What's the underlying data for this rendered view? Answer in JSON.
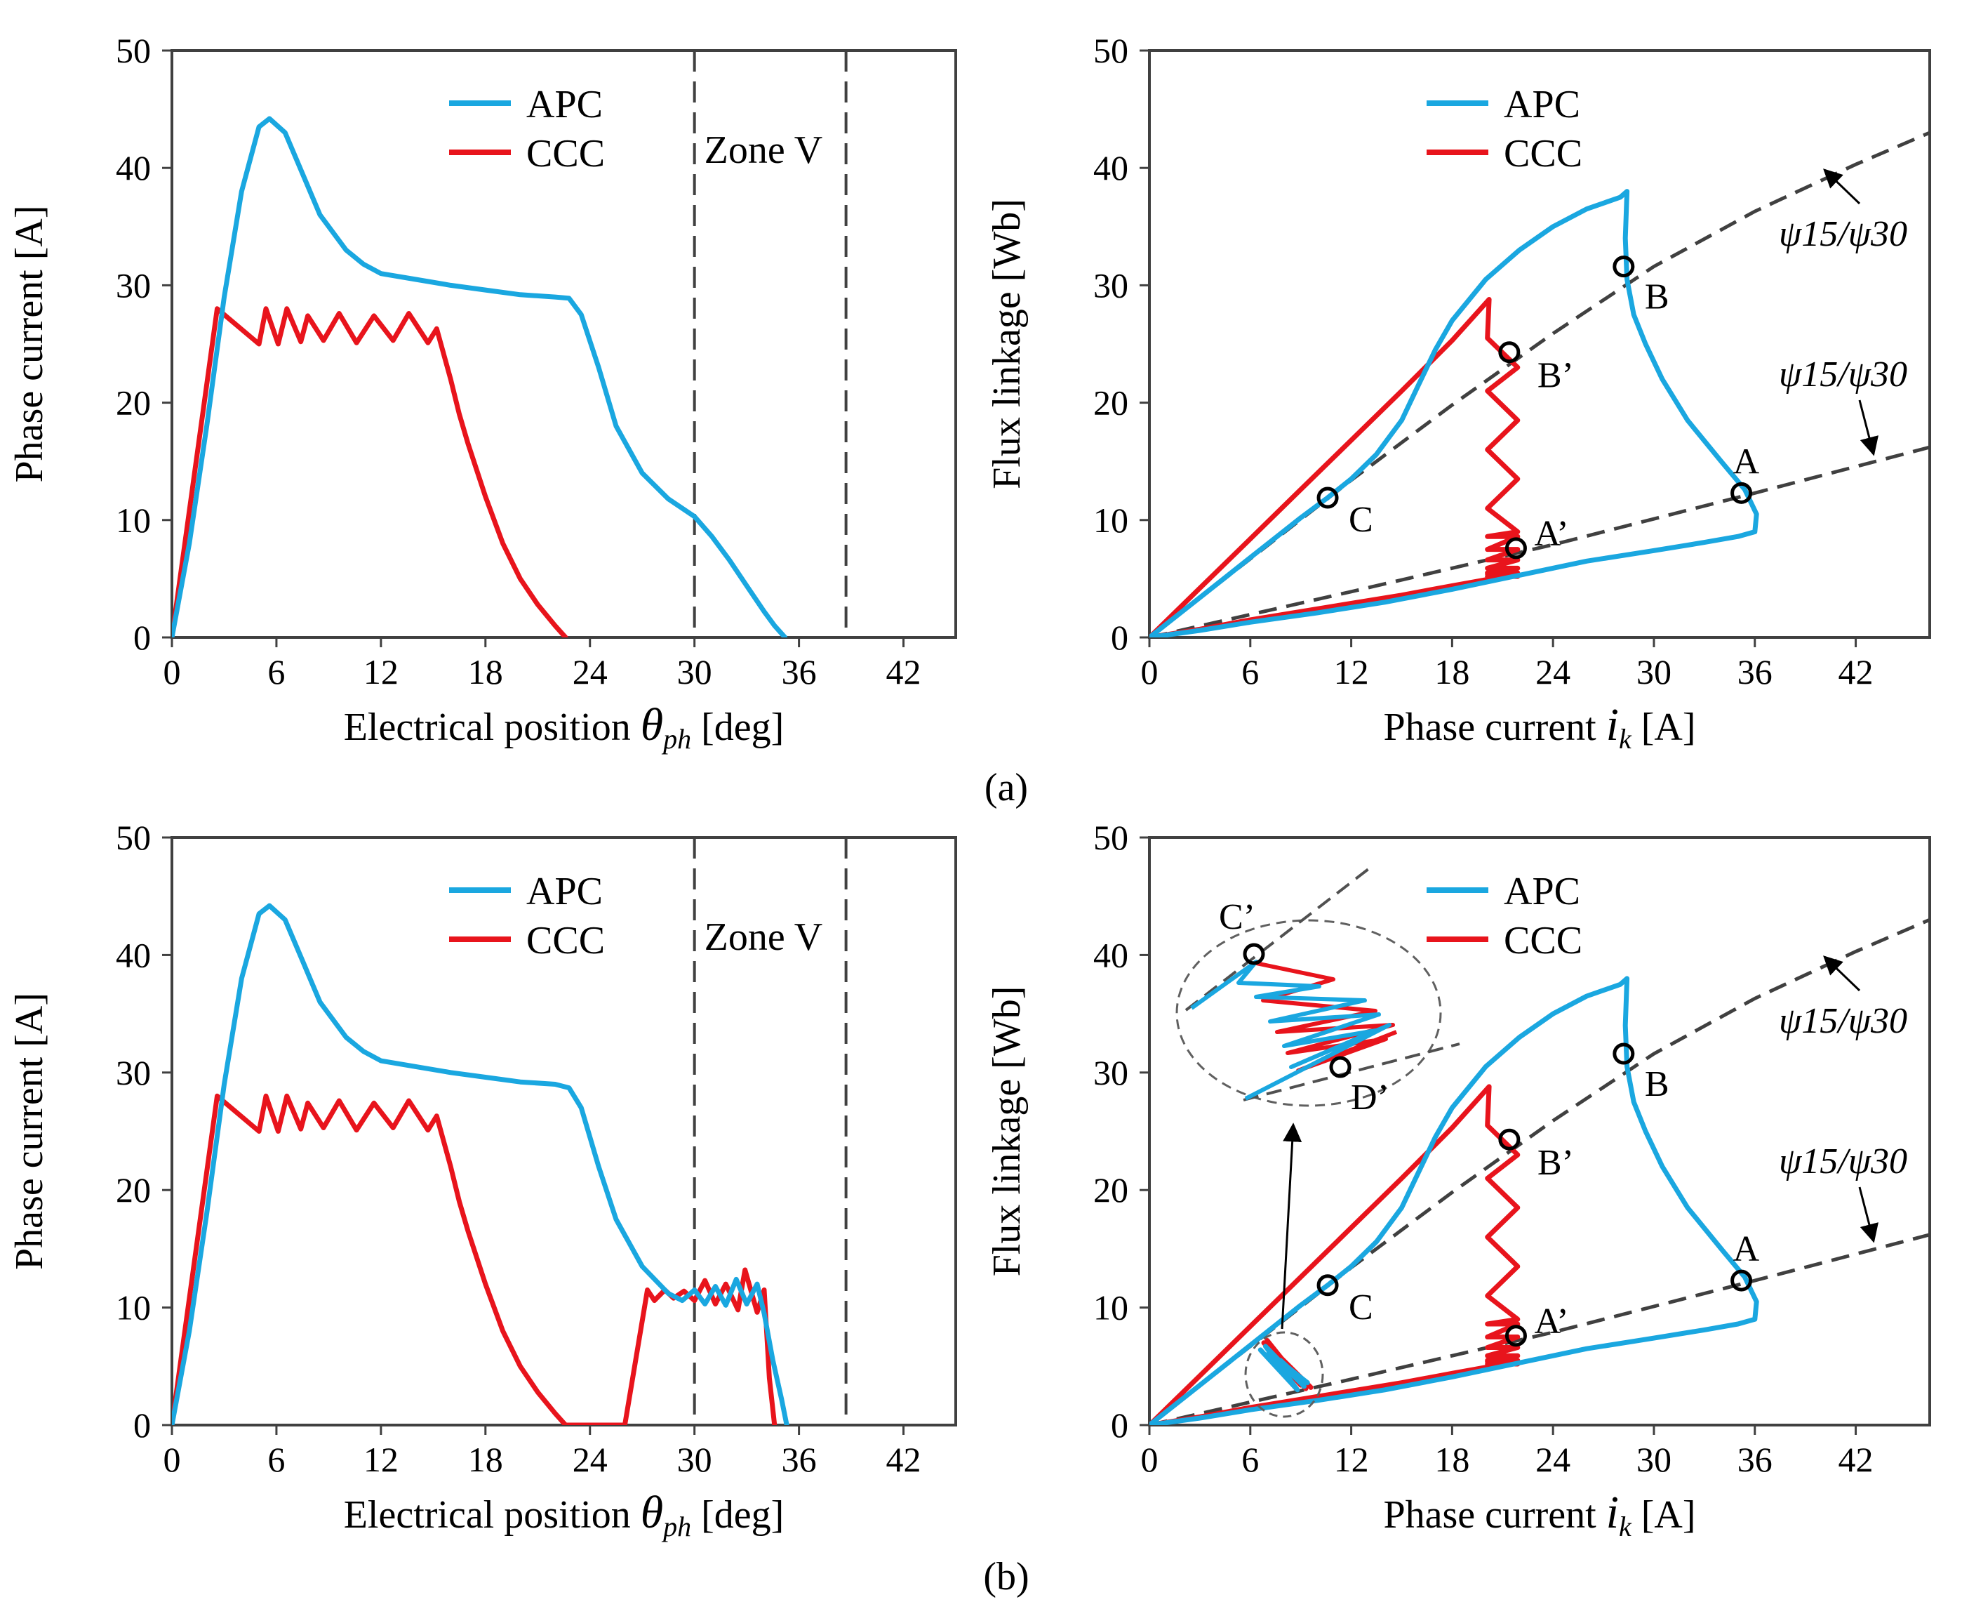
{
  "captions": [
    "(a)",
    "(b)"
  ],
  "colors": {
    "apc": "#1aa7e0",
    "ccc": "#e8141c",
    "ref": "#404040",
    "axis": "#404040"
  },
  "chart_data": [
    {
      "panel": "a-left",
      "type": "line",
      "xlabel": "Electrical position",
      "xlabel_symbol": "θ",
      "xlabel_sub": "ph",
      "xlabel_unit": "[deg]",
      "ylabel": "Phase current [A]",
      "xlim": [
        0,
        45
      ],
      "ylim": [
        0,
        50
      ],
      "xticks": [
        0,
        6,
        12,
        18,
        24,
        30,
        36,
        42
      ],
      "yticks": [
        0,
        10,
        20,
        30,
        40,
        50
      ],
      "legend": [
        "APC",
        "CCC"
      ],
      "legend_position": "top-center",
      "vlines": [
        30,
        38.7
      ],
      "zone_label": "Zone V",
      "series": [
        {
          "name": "APC",
          "color": "#1aa7e0",
          "x": [
            0,
            1,
            2,
            3,
            4,
            5,
            5.6,
            6.5,
            7.5,
            8.5,
            10,
            11,
            12,
            14,
            16,
            18,
            20,
            22,
            22.8,
            23.5,
            24.5,
            25.5,
            27,
            28.5,
            30,
            31,
            32,
            33,
            34,
            34.6,
            35.2
          ],
          "y": [
            0,
            8,
            18,
            29,
            38,
            43.5,
            44.2,
            43,
            39.5,
            36,
            33,
            31.8,
            31,
            30.5,
            30,
            29.6,
            29.2,
            29,
            28.9,
            27.5,
            23,
            18,
            14,
            11.8,
            10.3,
            8.6,
            6.6,
            4.4,
            2.2,
            1.0,
            0
          ]
        },
        {
          "name": "CCC",
          "color": "#e8141c",
          "x": [
            0,
            2.6,
            5.0,
            5.4,
            6.1,
            6.6,
            7.4,
            7.8,
            8.7,
            9.6,
            10.6,
            11.6,
            12.7,
            13.6,
            14.7,
            15.2,
            16,
            16.5,
            17,
            18,
            19,
            20,
            21,
            22,
            22.6
          ],
          "y": [
            0,
            28,
            25,
            28,
            25,
            28,
            25.2,
            27.4,
            25.3,
            27.6,
            25.1,
            27.4,
            25.3,
            27.6,
            25.1,
            26.3,
            22,
            19,
            16.5,
            12,
            8,
            5,
            2.8,
            1,
            0
          ]
        }
      ]
    },
    {
      "panel": "a-right",
      "type": "line",
      "xlabel": "Phase current",
      "xlabel_symbol": "i",
      "xlabel_sub": "k",
      "xlabel_unit": "[A]",
      "ylabel": "Flux linkage [Wb]",
      "xlim": [
        0,
        46.4
      ],
      "ylim": [
        0,
        50
      ],
      "xticks": [
        0,
        6,
        12,
        18,
        24,
        30,
        36,
        42
      ],
      "yticks": [
        0,
        10,
        20,
        30,
        40,
        50
      ],
      "legend": [
        "APC",
        "CCC"
      ],
      "legend_position": "top-center",
      "reference_curves": [
        {
          "label": "ψ15/ψ30",
          "x": [
            0,
            6,
            12,
            18,
            24,
            30,
            36,
            42,
            46.4
          ],
          "y": [
            0,
            6.7,
            13.4,
            19.8,
            25.9,
            31.6,
            36.3,
            40.3,
            43
          ]
        },
        {
          "label": "ψ15/ψ30",
          "x": [
            0,
            12,
            24,
            36,
            46.4
          ],
          "y": [
            0,
            3.9,
            7.9,
            12.3,
            16.2
          ]
        }
      ],
      "markers": [
        {
          "label": "A",
          "x": 35.2,
          "y": 12.3
        },
        {
          "label": "B",
          "x": 28.2,
          "y": 31.6
        },
        {
          "label": "C",
          "x": 10.6,
          "y": 11.9
        },
        {
          "label": "A’",
          "x": 21.8,
          "y": 7.6
        },
        {
          "label": "B’",
          "x": 21.4,
          "y": 24.3
        }
      ],
      "series": [
        {
          "name": "APC",
          "color": "#1aa7e0",
          "x": [
            0,
            3,
            6,
            9,
            10.6,
            12,
            13.5,
            15,
            16,
            17,
            18,
            20,
            22,
            24,
            26,
            28,
            28.4,
            28.3,
            28.4,
            28.8,
            29.5,
            30.5,
            32,
            34,
            35.4,
            36.1,
            36.0,
            35,
            33,
            30,
            26,
            22,
            18,
            14,
            10,
            6,
            3,
            0
          ],
          "y": [
            0,
            3.4,
            6.8,
            10.2,
            11.9,
            13.5,
            15.6,
            18.5,
            21.5,
            24.5,
            27,
            30.5,
            33,
            35,
            36.5,
            37.5,
            38,
            34,
            30.5,
            27.5,
            25,
            22,
            18.5,
            15,
            12.6,
            10.5,
            9.0,
            8.6,
            8.1,
            7.4,
            6.5,
            5.3,
            4.1,
            3.0,
            2.1,
            1.3,
            0.6,
            0
          ]
        },
        {
          "name": "CCC",
          "color": "#e8141c",
          "x": [
            0,
            3,
            6,
            9,
            12,
            15,
            18,
            20.2,
            20.2,
            20.1,
            21.9,
            20.1,
            21.9,
            20.1,
            21.9,
            20.1,
            21.9,
            20.1,
            21.9,
            20.1,
            21.9,
            20.1,
            21.9,
            20.1,
            21.9,
            20.1,
            21.9,
            20.1,
            21.9,
            20.1,
            21.9,
            18,
            15,
            12,
            9,
            6,
            3,
            0
          ],
          "y": [
            0,
            4.2,
            8.4,
            12.6,
            16.8,
            21,
            25.3,
            28.8,
            28.8,
            25.5,
            23,
            21,
            18.5,
            16,
            13.5,
            11,
            9,
            8.6,
            8.6,
            7.5,
            7.5,
            6.6,
            6.6,
            5.9,
            5.9,
            5.2,
            5.2,
            5.5,
            5.5,
            5.4,
            5.4,
            4.4,
            3.6,
            2.9,
            2.2,
            1.5,
            0.7,
            0
          ]
        }
      ]
    },
    {
      "panel": "b-left",
      "type": "line",
      "xlabel": "Electrical position",
      "xlabel_symbol": "θ",
      "xlabel_sub": "ph",
      "xlabel_unit": "[deg]",
      "ylabel": "Phase current [A]",
      "xlim": [
        0,
        45
      ],
      "ylim": [
        0,
        50
      ],
      "xticks": [
        0,
        6,
        12,
        18,
        24,
        30,
        36,
        42
      ],
      "yticks": [
        0,
        10,
        20,
        30,
        40,
        50
      ],
      "legend": [
        "APC",
        "CCC"
      ],
      "legend_position": "top-center",
      "vlines": [
        30,
        38.7
      ],
      "zone_label": "Zone V",
      "series": [
        {
          "name": "APC",
          "color": "#1aa7e0",
          "x": [
            0,
            1,
            2,
            3,
            4,
            5,
            5.6,
            6.5,
            7.5,
            8.5,
            10,
            11,
            12,
            14,
            16,
            18,
            20,
            22,
            22.8,
            23.5,
            24.5,
            25.5,
            27,
            28.5,
            29.3,
            30.0,
            30.6,
            31.2,
            31.8,
            32.4,
            33.0,
            33.6,
            34.0,
            34.5,
            35.0,
            35.3
          ],
          "y": [
            0,
            8,
            18,
            29,
            38,
            43.5,
            44.2,
            43,
            39.5,
            36,
            33,
            31.8,
            31,
            30.5,
            30,
            29.6,
            29.2,
            29,
            28.7,
            27,
            22,
            17.5,
            13.5,
            11.2,
            10.6,
            11.5,
            10.3,
            11.8,
            10.2,
            12.4,
            10.3,
            12.0,
            9.5,
            5.5,
            2.2,
            0
          ]
        },
        {
          "name": "CCC",
          "color": "#e8141c",
          "x": [
            0,
            2.6,
            5.0,
            5.4,
            6.1,
            6.6,
            7.4,
            7.8,
            8.7,
            9.6,
            10.6,
            11.6,
            12.7,
            13.6,
            14.7,
            15.2,
            16,
            16.5,
            17,
            18,
            19,
            20,
            21,
            22,
            22.6,
            26.0,
            27.3,
            27.7,
            28.3,
            28.8,
            29.4,
            30.0,
            30.6,
            31.2,
            31.8,
            32.5,
            32.9,
            33.6,
            34.0,
            34.3,
            34.6
          ],
          "y": [
            0,
            28,
            25,
            28,
            25,
            28,
            25.2,
            27.4,
            25.3,
            27.6,
            25.1,
            27.4,
            25.3,
            27.6,
            25.1,
            26.3,
            22,
            19,
            16.5,
            12,
            8,
            5,
            2.8,
            1,
            0,
            0,
            11.5,
            10.6,
            11.5,
            10.8,
            11.4,
            10.6,
            12.3,
            10.3,
            12.0,
            9.8,
            13.2,
            9.6,
            11.5,
            4,
            0
          ]
        }
      ]
    },
    {
      "panel": "b-right",
      "type": "line",
      "xlabel": "Phase current",
      "xlabel_symbol": "i",
      "xlabel_sub": "k",
      "xlabel_unit": "[A]",
      "ylabel": "Flux linkage [Wb]",
      "xlim": [
        0,
        46.4
      ],
      "ylim": [
        0,
        50
      ],
      "xticks": [
        0,
        6,
        12,
        18,
        24,
        30,
        36,
        42
      ],
      "yticks": [
        0,
        10,
        20,
        30,
        40,
        50
      ],
      "legend": [
        "APC",
        "CCC"
      ],
      "legend_position": "top-center",
      "reference_curves": [
        {
          "label": "ψ15/ψ30",
          "x": [
            0,
            6,
            12,
            18,
            24,
            30,
            36,
            42,
            46.4
          ],
          "y": [
            0,
            6.7,
            13.4,
            19.8,
            25.9,
            31.6,
            36.3,
            40.3,
            43
          ]
        },
        {
          "label": "ψ15/ψ30",
          "x": [
            0,
            12,
            24,
            36,
            46.4
          ],
          "y": [
            0,
            3.9,
            7.9,
            12.3,
            16.2
          ]
        }
      ],
      "markers": [
        {
          "label": "A",
          "x": 35.2,
          "y": 12.3
        },
        {
          "label": "B",
          "x": 28.2,
          "y": 31.6
        },
        {
          "label": "C",
          "x": 10.6,
          "y": 11.9
        },
        {
          "label": "A’",
          "x": 21.8,
          "y": 7.6
        },
        {
          "label": "B’",
          "x": 21.4,
          "y": 24.3
        }
      ],
      "inset_markers": [
        "C’",
        "D’"
      ],
      "series": [
        {
          "name": "APC",
          "color": "#1aa7e0",
          "x": [
            0,
            3,
            6,
            9,
            10.6,
            12,
            13.5,
            15,
            16,
            17,
            18,
            20,
            22,
            24,
            26,
            28,
            28.4,
            28.3,
            28.4,
            28.8,
            29.5,
            30.5,
            32,
            34,
            35.4,
            36.1,
            36.0,
            35,
            33,
            30,
            26,
            22,
            18,
            14,
            10,
            6,
            3,
            0
          ],
          "y": [
            0,
            3.4,
            6.8,
            10.2,
            11.9,
            13.5,
            15.6,
            18.5,
            21.5,
            24.5,
            27,
            30.5,
            33,
            35,
            36.5,
            37.5,
            38,
            34,
            30.5,
            27.5,
            25,
            22,
            18.5,
            15,
            12.6,
            10.5,
            9.0,
            8.6,
            8.1,
            7.4,
            6.5,
            5.3,
            4.1,
            3.0,
            2.1,
            1.3,
            0.6,
            0
          ]
        },
        {
          "name": "CCC",
          "color": "#e8141c",
          "x": [
            0,
            3,
            6,
            9,
            12,
            15,
            18,
            20.2,
            20.2,
            20.1,
            21.9,
            20.1,
            21.9,
            20.1,
            21.9,
            20.1,
            21.9,
            20.1,
            21.9,
            20.1,
            21.9,
            20.1,
            21.9,
            20.1,
            21.9,
            20.1,
            21.9,
            20.1,
            21.9,
            20.1,
            21.9,
            18,
            15,
            12,
            9,
            6,
            3,
            0
          ],
          "y": [
            0,
            4.2,
            8.4,
            12.6,
            16.8,
            21,
            25.3,
            28.8,
            28.8,
            25.5,
            23,
            21,
            18.5,
            16,
            13.5,
            11,
            9,
            8.6,
            8.6,
            7.5,
            7.5,
            6.6,
            6.6,
            5.9,
            5.9,
            5.2,
            5.2,
            5.5,
            5.5,
            5.4,
            5.4,
            4.4,
            3.6,
            2.9,
            2.2,
            1.5,
            0.7,
            0
          ]
        },
        {
          "name": "APC zone V",
          "color": "#1aa7e0",
          "x": [
            6.6,
            8.8,
            6.9,
            9.2,
            7.1,
            9.4,
            7.4,
            9.0,
            7.8,
            8.6,
            8.3
          ],
          "y": [
            6.4,
            3.0,
            6.7,
            3.3,
            6.2,
            3.6,
            5.8,
            3.9,
            5.5,
            4.2,
            4.8
          ]
        },
        {
          "name": "CCC zone V",
          "color": "#e8141c",
          "x": [
            6.8,
            9.0,
            7.0,
            9.3,
            7.2,
            9.6,
            7.5,
            9.2,
            7.9,
            8.8,
            8.4
          ],
          "y": [
            7.0,
            3.4,
            7.2,
            3.1,
            6.6,
            3.2,
            6.0,
            3.6,
            5.6,
            3.9,
            4.6
          ]
        }
      ]
    }
  ]
}
